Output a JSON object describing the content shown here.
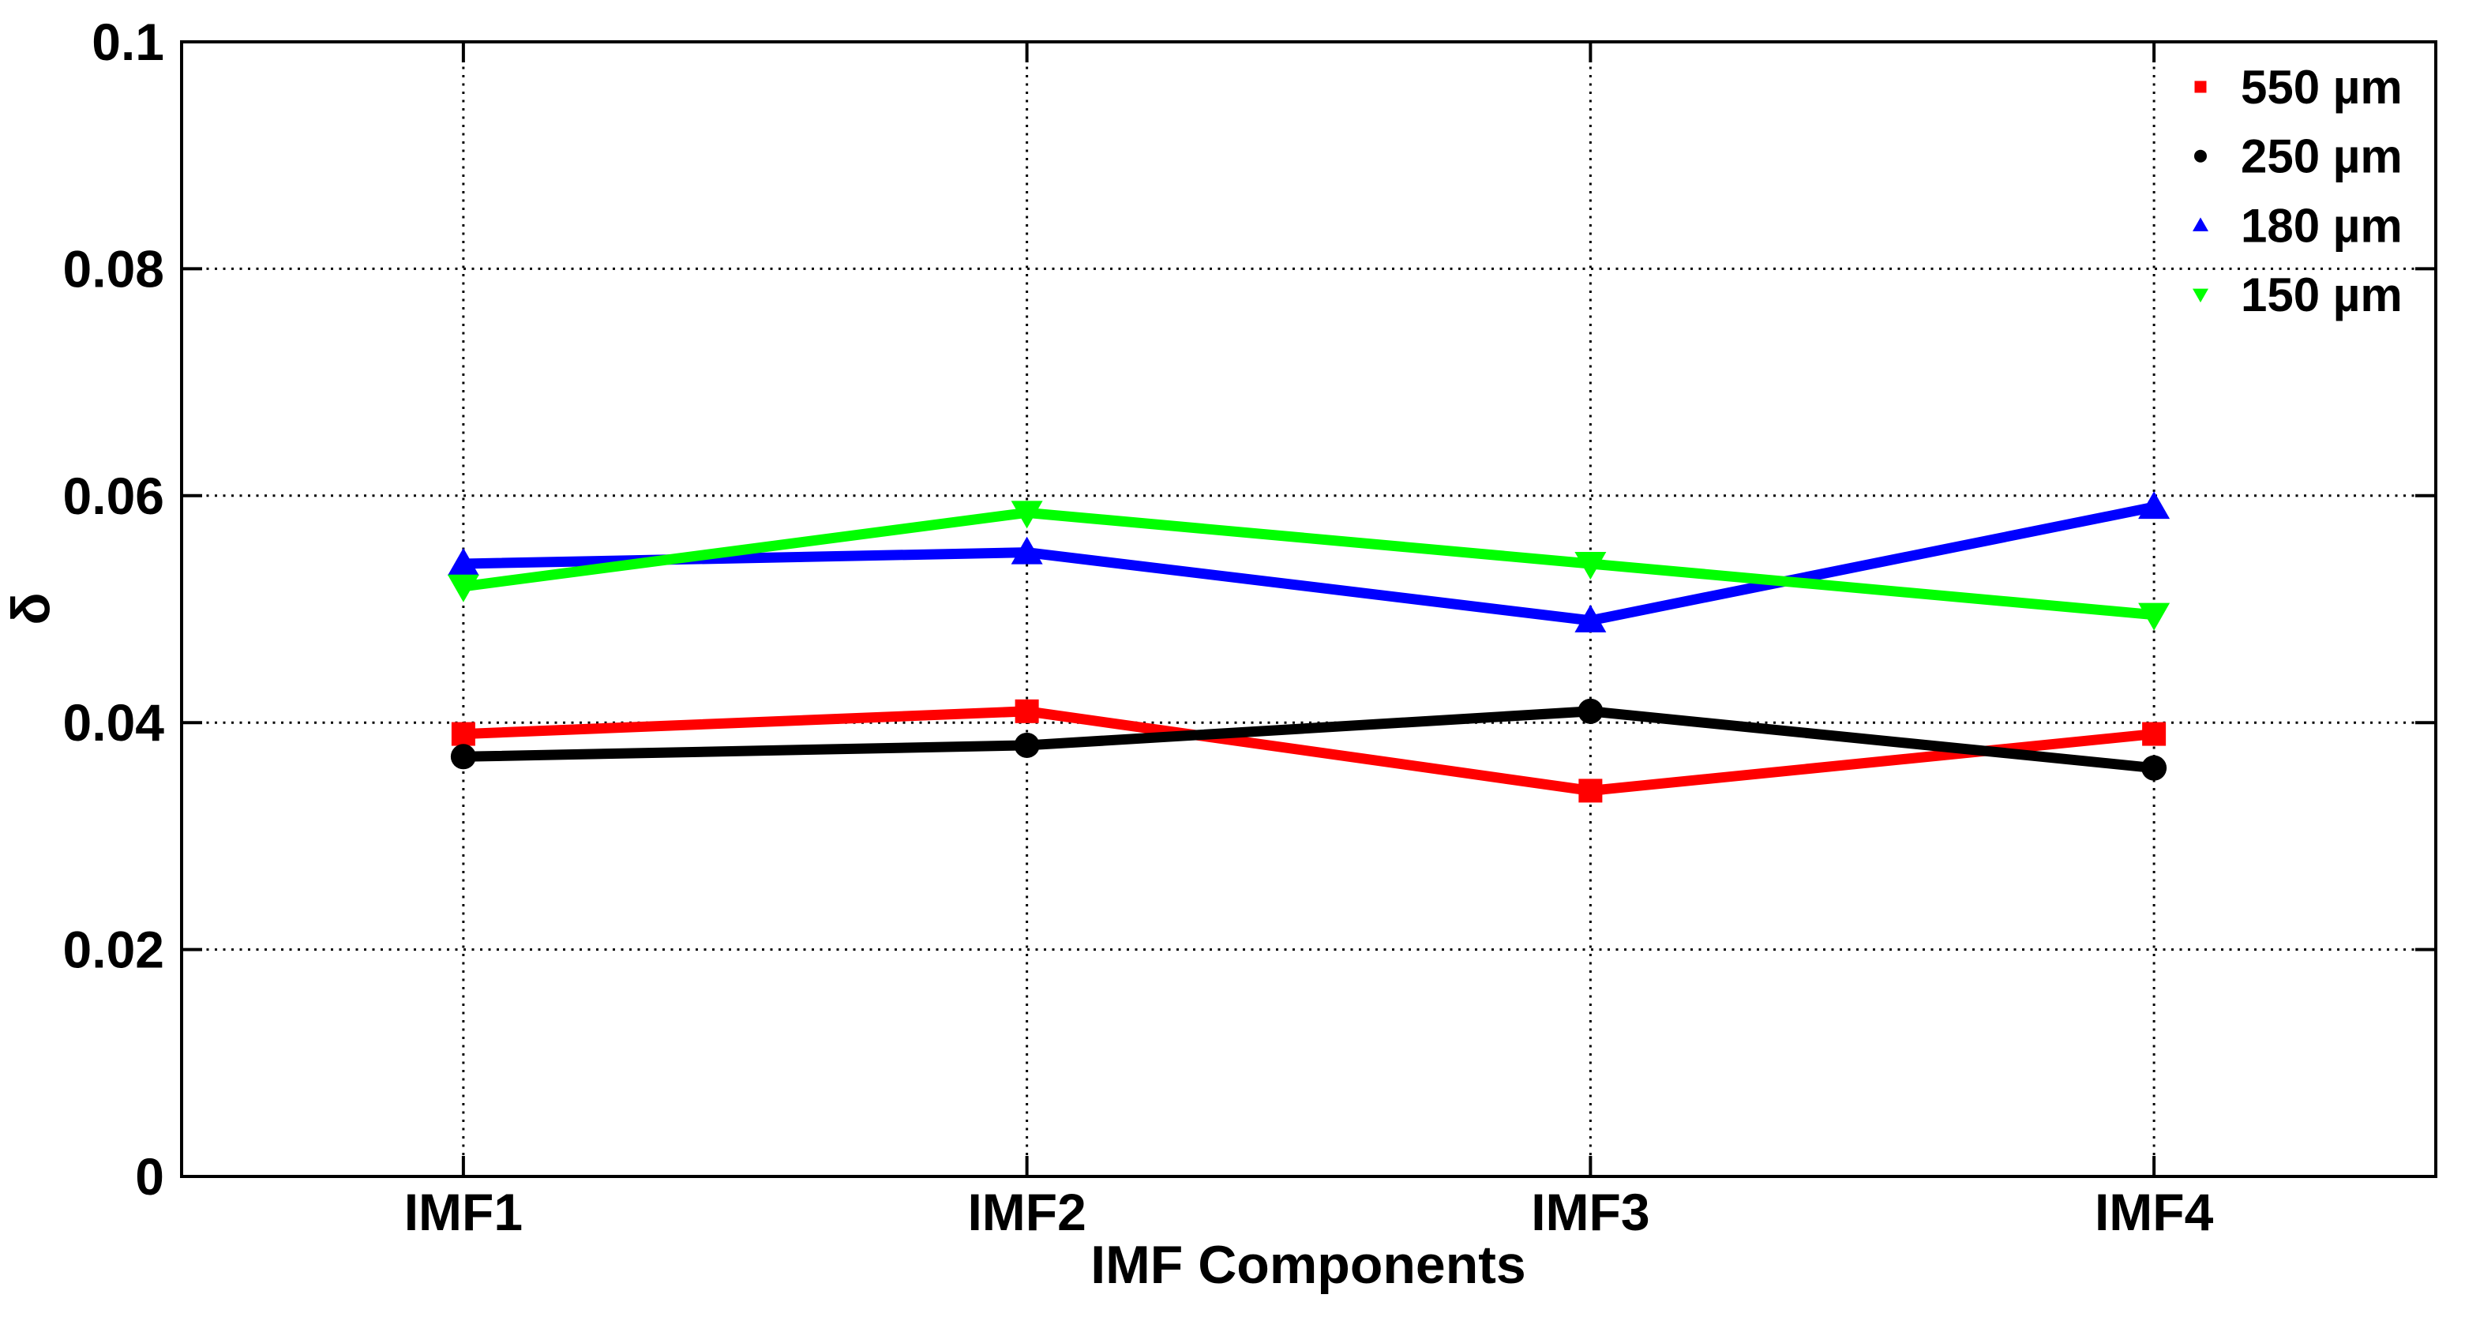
{
  "figure": {
    "background": "#ffffff",
    "axis_color": "#000000",
    "grid_color": "#000000",
    "text_color": "#000000"
  },
  "chart_data": {
    "type": "line",
    "title": "",
    "xlabel": "IMF Components",
    "ylabel": "δ",
    "categories": [
      "IMF1",
      "IMF2",
      "IMF3",
      "IMF4"
    ],
    "series": [
      {
        "name": "550 µm",
        "color": "#ff0000",
        "marker": "square",
        "values": [
          0.039,
          0.041,
          0.034,
          0.039
        ]
      },
      {
        "name": "250 µm",
        "color": "#000000",
        "marker": "circle",
        "values": [
          0.037,
          0.038,
          0.041,
          0.036
        ]
      },
      {
        "name": "180 µm",
        "color": "#0000ff",
        "marker": "triangle-up",
        "values": [
          0.054,
          0.055,
          0.049,
          0.059
        ]
      },
      {
        "name": "150 µm",
        "color": "#00ff00",
        "marker": "triangle-down",
        "values": [
          0.052,
          0.0585,
          0.054,
          0.0495
        ]
      }
    ],
    "ylim": [
      0,
      0.1
    ],
    "yticks": [
      0,
      0.02,
      0.04,
      0.06,
      0.08,
      0.1
    ],
    "ytick_labels": [
      "0",
      "0.02",
      "0.04",
      "0.06",
      "0.08",
      "0.1"
    ],
    "grid": "dotted",
    "legend_position": "top-right",
    "legend_box": false
  }
}
